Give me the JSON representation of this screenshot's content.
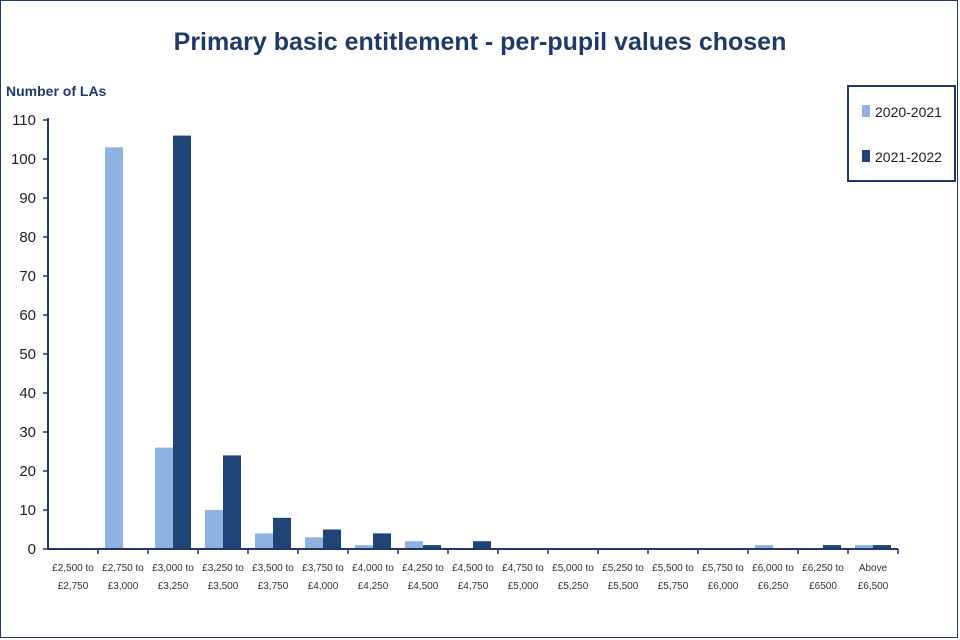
{
  "chart_data": {
    "type": "bar",
    "title": "Primary basic entitlement - per-pupil values chosen",
    "ylabel": "Number of LAs",
    "xlabel": "",
    "ylim": [
      0,
      110
    ],
    "ytick_step": 10,
    "grid": false,
    "legend_position": "top-right",
    "categories": [
      [
        "£2,500 to",
        "£2,750"
      ],
      [
        "£2,750 to",
        "£3,000"
      ],
      [
        "£3,000 to",
        "£3,250"
      ],
      [
        "£3,250 to",
        "£3,500"
      ],
      [
        "£3,500 to",
        "£3,750"
      ],
      [
        "£3,750 to",
        "£4,000"
      ],
      [
        "£4,000 to",
        "£4,250"
      ],
      [
        "£4,250 to",
        "£4,500"
      ],
      [
        "£4,500 to",
        "£4,750"
      ],
      [
        "£4,750 to",
        "£5,000"
      ],
      [
        "£5,000 to",
        "£5,250"
      ],
      [
        "£5,250 to",
        "£5,500"
      ],
      [
        "£5,500 to",
        "£5,750"
      ],
      [
        "£5,750 to",
        "£6,000"
      ],
      [
        "£6,000 to",
        "£6,250"
      ],
      [
        "£6,250 to",
        "£6500"
      ],
      [
        "Above",
        "£6,500"
      ]
    ],
    "series": [
      {
        "name": "2020-2021",
        "color": "#8eb3e0",
        "values": [
          0,
          103,
          26,
          10,
          4,
          3,
          1,
          2,
          0,
          0,
          0,
          0,
          0,
          0,
          1,
          0,
          1
        ]
      },
      {
        "name": "2021-2022",
        "color": "#1f4477",
        "values": [
          0,
          0,
          106,
          24,
          8,
          5,
          4,
          1,
          2,
          0,
          0,
          0,
          0,
          0,
          0,
          1,
          1
        ]
      }
    ]
  },
  "colors": {
    "title": "#1f3a6b",
    "axis": "#1f3a6b",
    "legend_border": "#1f3a6b"
  }
}
